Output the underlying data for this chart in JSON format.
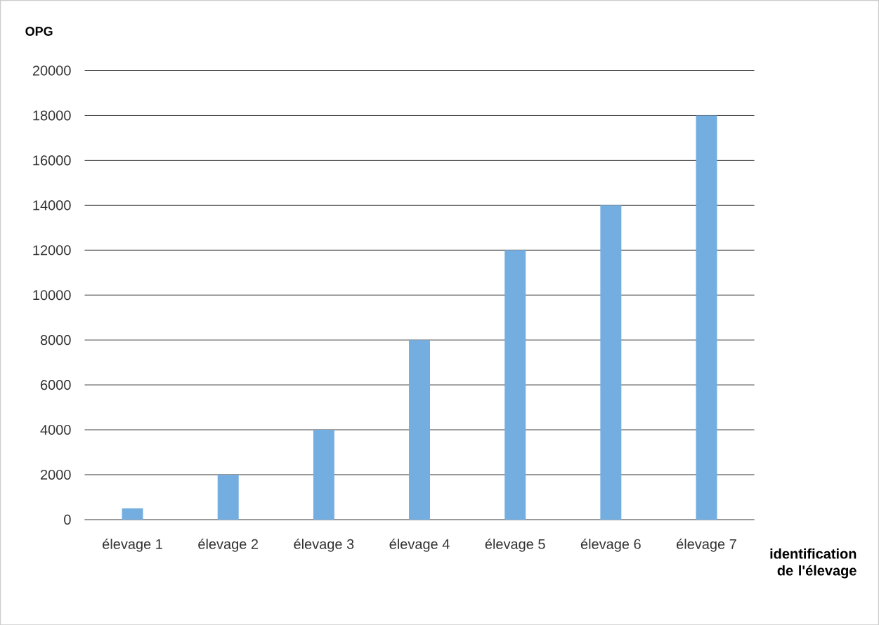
{
  "chart_data": {
    "type": "bar",
    "categories": [
      "élevage 1",
      "élevage 2",
      "élevage 3",
      "élevage 4",
      "élevage 5",
      "élevage 6",
      "élevage 7"
    ],
    "values": [
      500,
      2000,
      4000,
      8000,
      12000,
      14000,
      18000
    ],
    "color": "#74aee0",
    "ylabel": "OPG",
    "xlabel": "identification de l'élevage",
    "ylim": [
      0,
      20000
    ],
    "yticks": [
      0,
      2000,
      4000,
      6000,
      8000,
      10000,
      12000,
      14000,
      16000,
      18000,
      20000
    ],
    "grid": "y"
  }
}
